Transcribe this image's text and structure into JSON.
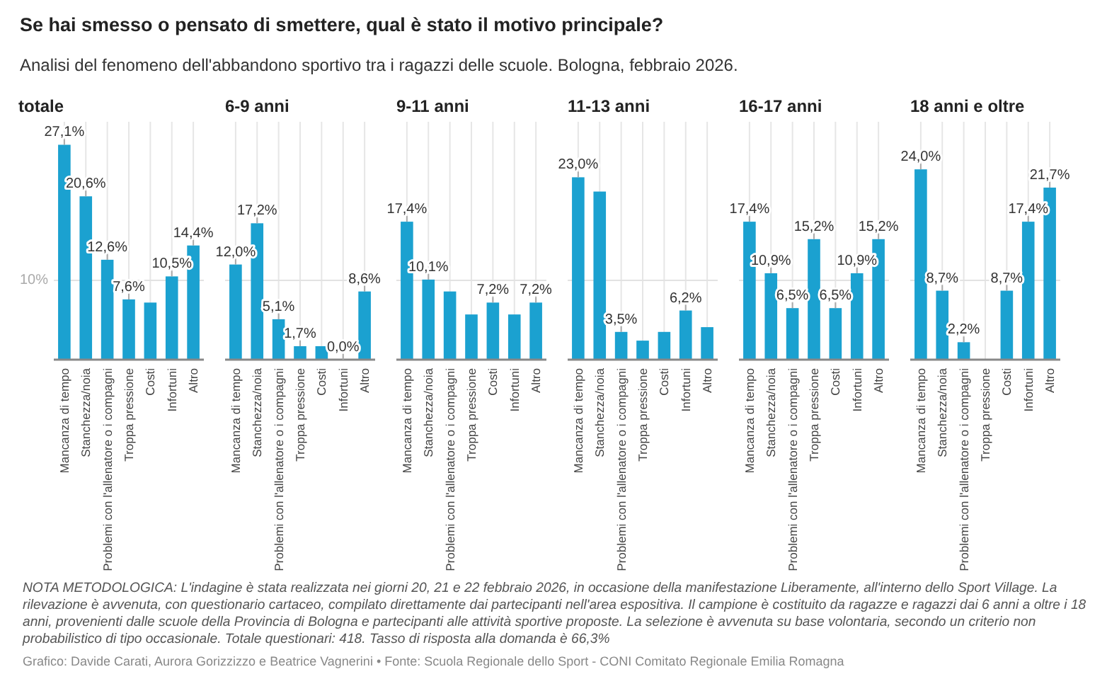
{
  "chart_data": [
    {
      "type": "other",
      "title": "Se hai smesso o pensato di smettere, qual è stato il motivo principale?",
      "subtitle": "Analisi del fenomeno dell'abbandono sportivo tra i ragazzi delle scuole. Bologna, febbraio 2026.",
      "annotations": [
        "NOTA METODOLOGICA: L'indagine è stata realizzata nei giorni 20, 21 e 22 febbraio 2026, in occasione della manifestazione Liberamente, all'interno dello Sport Village. La rilevazione è avvenuta, con questionario cartaceo, compilato direttamente dai partecipanti nell'area espositiva. Il campione è costituito da ragazze e ragazzi dai 6 anni a oltre i 18 anni, provenienti dalle scuole della Provincia di Bologna e partecipanti alle attività sportive proposte. La selezione è avvenuta su base volontaria, secondo un criterio non probabilistico di tipo occasionale. Totale questionari: 418. Tasso di risposta alla domanda è 66,3%",
        "Grafico: Davide Carati, Aurora Gorizzizzo e Beatrice Vagnerini • Fonte: Scuola Regionale dello Sport - CONI Comitato Regionale Emilia Romagna"
      ]
    },
    {
      "type": "bar",
      "title": "totale",
      "categories": [
        "Mancanza di tempo",
        "Stanchezza/noia",
        "Problemi con l'allenatore o i compagni",
        "Troppa pressione",
        "Costi",
        "Infortuni",
        "Altro"
      ],
      "values": [
        27.1,
        20.6,
        12.6,
        7.6,
        7.2,
        10.5,
        14.4
      ],
      "value_labels": [
        "27,1%",
        "20,6%",
        "12,6%",
        "7,6%",
        null,
        "10,5%",
        "14,4%"
      ],
      "color": "#1ba1d0",
      "ylim": [
        0,
        30
      ],
      "ref_lines": [
        {
          "axis": "y",
          "value": 10,
          "label": "10%"
        }
      ],
      "grid": "x"
    },
    {
      "type": "bar",
      "title": "6-9 anni",
      "categories": [
        "Mancanza di tempo",
        "Stanchezza/noia",
        "Problemi con l'allenatore o i compagni",
        "Troppa pressione",
        "Costi",
        "Infortuni",
        "Altro"
      ],
      "values": [
        12.0,
        17.2,
        5.1,
        1.7,
        1.7,
        0.0,
        8.6
      ],
      "value_labels": [
        "12,0%",
        "17,2%",
        "5,1%",
        "1,7%",
        null,
        "0,0%",
        "8,6%"
      ],
      "color": "#1ba1d0",
      "ylim": [
        0,
        30
      ],
      "ref_lines": [
        {
          "axis": "y",
          "value": 10
        }
      ],
      "grid": "x"
    },
    {
      "type": "bar",
      "title": "9-11 anni",
      "categories": [
        "Mancanza di tempo",
        "Stanchezza/noia",
        "Problemi con l'allenatore o i compagni",
        "Troppa pressione",
        "Costi",
        "Infortuni",
        "Altro"
      ],
      "values": [
        17.4,
        10.1,
        8.6,
        5.7,
        7.2,
        5.7,
        7.2
      ],
      "value_labels": [
        "17,4%",
        "10,1%",
        null,
        null,
        "7,2%",
        null,
        "7,2%"
      ],
      "color": "#1ba1d0",
      "ylim": [
        0,
        30
      ],
      "ref_lines": [
        {
          "axis": "y",
          "value": 10
        }
      ],
      "grid": "x"
    },
    {
      "type": "bar",
      "title": "11-13 anni",
      "categories": [
        "Mancanza di tempo",
        "Stanchezza/noia",
        "Problemi con l'allenatore o i compagni",
        "Troppa pressione",
        "Costi",
        "Infortuni",
        "Altro"
      ],
      "values": [
        23.0,
        21.2,
        3.5,
        2.4,
        3.5,
        6.2,
        4.1
      ],
      "value_labels": [
        "23,0%",
        null,
        "3,5%",
        null,
        null,
        "6,2%",
        null
      ],
      "color": "#1ba1d0",
      "ylim": [
        0,
        30
      ],
      "ref_lines": [
        {
          "axis": "y",
          "value": 10
        }
      ],
      "grid": "x"
    },
    {
      "type": "bar",
      "title": "16-17 anni",
      "categories": [
        "Mancanza di tempo",
        "Stanchezza/noia",
        "Problemi con l'allenatore o i compagni",
        "Troppa pressione",
        "Costi",
        "Infortuni",
        "Altro"
      ],
      "values": [
        17.4,
        10.9,
        6.5,
        15.2,
        6.5,
        10.9,
        15.2
      ],
      "value_labels": [
        "17,4%",
        "10,9%",
        "6,5%",
        "15,2%",
        "6,5%",
        "10,9%",
        "15,2%"
      ],
      "color": "#1ba1d0",
      "ylim": [
        0,
        30
      ],
      "ref_lines": [
        {
          "axis": "y",
          "value": 10
        }
      ],
      "grid": "x"
    },
    {
      "type": "bar",
      "title": "18 anni e oltre",
      "categories": [
        "Mancanza di tempo",
        "Stanchezza/noia",
        "Problemi con l'allenatore o i compagni",
        "Troppa pressione",
        "Costi",
        "Infortuni",
        "Altro"
      ],
      "values": [
        24.0,
        8.7,
        2.2,
        0.0,
        8.7,
        17.4,
        21.7
      ],
      "value_labels": [
        "24,0%",
        "8,7%",
        "2,2%",
        null,
        "8,7%",
        "17,4%",
        "21,7%"
      ],
      "color": "#1ba1d0",
      "ylim": [
        0,
        30
      ],
      "ref_lines": [
        {
          "axis": "y",
          "value": 10
        }
      ],
      "grid": "x"
    }
  ]
}
